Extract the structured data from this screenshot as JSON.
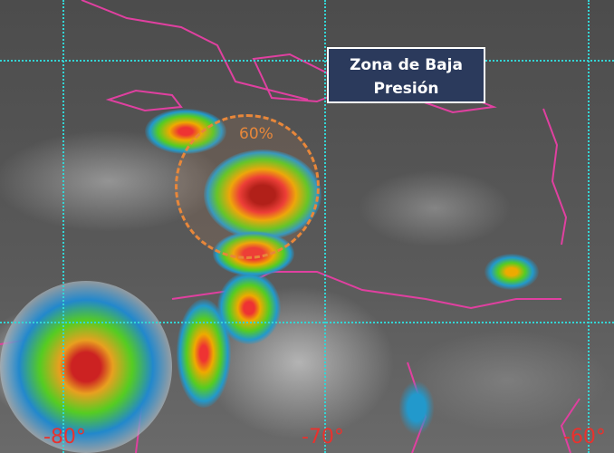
{
  "annotation": {
    "label_line1": "Zona de Baja",
    "label_line2": "Presión",
    "probability": "60%"
  },
  "longitude_labels": [
    "-80°",
    "-70°",
    "-60°"
  ],
  "colors": {
    "grid": "#33d6d6",
    "coastline": "#e040a0",
    "circle": "#e8873a",
    "label_bg": "#2b3a5c",
    "longitude_text": "#e8322e"
  }
}
